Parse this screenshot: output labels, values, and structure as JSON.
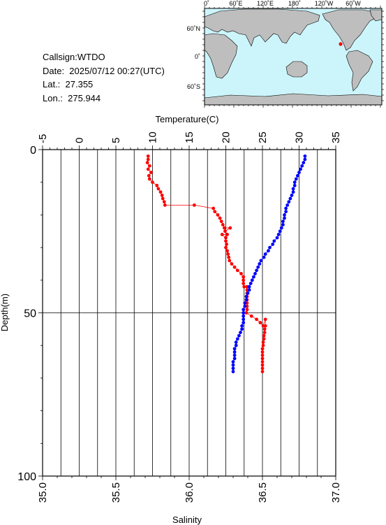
{
  "meta": {
    "callsign_line": "Callsign:WTDO",
    "date_line": "Date:  2025/07/12 00:27(UTC)",
    "lat_line": "Lat.:  27.355",
    "lon_line": "Lon.:  275.944"
  },
  "map": {
    "top_ticks": [
      "0˚",
      "60˚E",
      "120˚E",
      "180˚",
      "120˚W",
      "60˚W"
    ],
    "left_ticks": [
      "60˚N",
      "0˚",
      "60˚S"
    ],
    "colors": {
      "ocean": "#ccf5fb",
      "land": "#bebebe",
      "marker": "#ff0000"
    }
  },
  "chart_data": {
    "type": "scatter",
    "title_top": "Temperature(C)",
    "title_bottom": "Salinity",
    "ylabel": "Depth(m)",
    "temperature_axis": {
      "range": [
        -5,
        35
      ],
      "ticks": [
        "-5",
        "0",
        "5",
        "10",
        "15",
        "20",
        "25",
        "30",
        "35"
      ]
    },
    "salinity_axis": {
      "range": [
        35.0,
        37.0
      ],
      "ticks": [
        "35.0",
        "35.5",
        "36.0",
        "36.5",
        "37.0"
      ]
    },
    "depth_axis": {
      "range": [
        0,
        100
      ],
      "ticks": [
        "0",
        "50",
        "100"
      ],
      "inverted": true
    },
    "grid": true,
    "colors": {
      "temperature": "#ff0000",
      "salinity": "#0000ff"
    },
    "series": [
      {
        "quantity": "temperature",
        "points": [
          [
            9.4,
            2
          ],
          [
            9.4,
            3
          ],
          [
            9.3,
            4
          ],
          [
            9.6,
            5
          ],
          [
            9.4,
            6
          ],
          [
            9.8,
            7
          ],
          [
            9.5,
            8
          ],
          [
            9.6,
            9
          ],
          [
            10.0,
            10
          ],
          [
            10.6,
            11
          ],
          [
            10.8,
            12
          ],
          [
            11.1,
            13
          ],
          [
            11.3,
            14
          ],
          [
            11.4,
            15
          ],
          [
            11.6,
            16
          ],
          [
            11.7,
            17
          ],
          [
            15.7,
            17
          ],
          [
            18.3,
            18
          ],
          [
            18.5,
            19
          ],
          [
            18.9,
            20
          ],
          [
            19.2,
            21
          ],
          [
            19.4,
            22
          ],
          [
            19.6,
            23
          ],
          [
            19.8,
            24
          ],
          [
            20.6,
            24
          ],
          [
            19.9,
            25
          ],
          [
            20.2,
            26
          ],
          [
            19.5,
            26
          ],
          [
            20.0,
            27
          ],
          [
            20.0,
            28
          ],
          [
            20.1,
            29
          ],
          [
            20.0,
            30
          ],
          [
            20.2,
            31
          ],
          [
            20.3,
            32
          ],
          [
            20.4,
            33
          ],
          [
            20.5,
            34
          ],
          [
            20.8,
            35
          ],
          [
            21.2,
            36
          ],
          [
            21.6,
            37
          ],
          [
            22.1,
            38
          ],
          [
            22.4,
            39
          ],
          [
            22.4,
            40
          ],
          [
            22.4,
            41
          ],
          [
            22.5,
            42
          ],
          [
            22.9,
            42
          ],
          [
            22.9,
            43
          ],
          [
            22.9,
            44
          ],
          [
            22.9,
            45
          ],
          [
            22.9,
            46
          ],
          [
            22.9,
            47
          ],
          [
            22.9,
            48
          ],
          [
            22.9,
            49
          ],
          [
            22.8,
            50
          ],
          [
            23.5,
            51
          ],
          [
            24.2,
            52
          ],
          [
            24.7,
            53
          ],
          [
            25.1,
            54
          ],
          [
            25.4,
            52
          ],
          [
            25.4,
            54
          ],
          [
            25.3,
            55
          ],
          [
            25.3,
            56
          ],
          [
            25.2,
            57
          ],
          [
            25.2,
            58
          ],
          [
            25.1,
            59
          ],
          [
            25.1,
            60
          ],
          [
            25.0,
            61
          ],
          [
            25.0,
            62
          ],
          [
            25.0,
            63
          ],
          [
            25.0,
            64
          ],
          [
            25.0,
            65
          ],
          [
            25.0,
            66
          ],
          [
            25.0,
            67
          ],
          [
            25.0,
            68
          ]
        ]
      },
      {
        "quantity": "salinity",
        "points": [
          [
            36.79,
            2
          ],
          [
            36.79,
            3
          ],
          [
            36.78,
            4
          ],
          [
            36.77,
            5
          ],
          [
            36.76,
            6
          ],
          [
            36.75,
            7
          ],
          [
            36.74,
            8
          ],
          [
            36.73,
            9
          ],
          [
            36.72,
            10
          ],
          [
            36.72,
            11
          ],
          [
            36.71,
            12
          ],
          [
            36.71,
            13
          ],
          [
            36.7,
            14
          ],
          [
            36.69,
            15
          ],
          [
            36.68,
            16
          ],
          [
            36.67,
            17
          ],
          [
            36.66,
            18
          ],
          [
            36.66,
            19
          ],
          [
            36.65,
            20
          ],
          [
            36.65,
            21
          ],
          [
            36.64,
            22
          ],
          [
            36.64,
            23
          ],
          [
            36.63,
            24
          ],
          [
            36.62,
            25
          ],
          [
            36.61,
            26
          ],
          [
            36.6,
            27
          ],
          [
            36.58,
            28
          ],
          [
            36.57,
            29
          ],
          [
            36.55,
            30
          ],
          [
            36.54,
            31
          ],
          [
            36.52,
            32
          ],
          [
            36.51,
            33
          ],
          [
            36.49,
            34
          ],
          [
            36.48,
            35
          ],
          [
            36.47,
            36
          ],
          [
            36.46,
            37
          ],
          [
            36.45,
            38
          ],
          [
            36.44,
            39
          ],
          [
            36.43,
            40
          ],
          [
            36.42,
            41
          ],
          [
            36.41,
            42
          ],
          [
            36.41,
            43
          ],
          [
            36.4,
            44
          ],
          [
            36.39,
            45
          ],
          [
            36.39,
            46
          ],
          [
            36.38,
            47
          ],
          [
            36.38,
            48
          ],
          [
            36.37,
            49
          ],
          [
            36.37,
            50
          ],
          [
            36.37,
            51
          ],
          [
            36.37,
            52
          ],
          [
            36.37,
            53
          ],
          [
            36.36,
            54
          ],
          [
            36.36,
            55
          ],
          [
            36.35,
            56
          ],
          [
            36.34,
            57
          ],
          [
            36.33,
            58
          ],
          [
            36.32,
            59
          ],
          [
            36.32,
            60
          ],
          [
            36.31,
            61
          ],
          [
            36.31,
            62
          ],
          [
            36.31,
            63
          ],
          [
            36.31,
            64
          ],
          [
            36.3,
            65
          ],
          [
            36.3,
            66
          ],
          [
            36.3,
            67
          ],
          [
            36.3,
            68
          ]
        ]
      }
    ]
  }
}
